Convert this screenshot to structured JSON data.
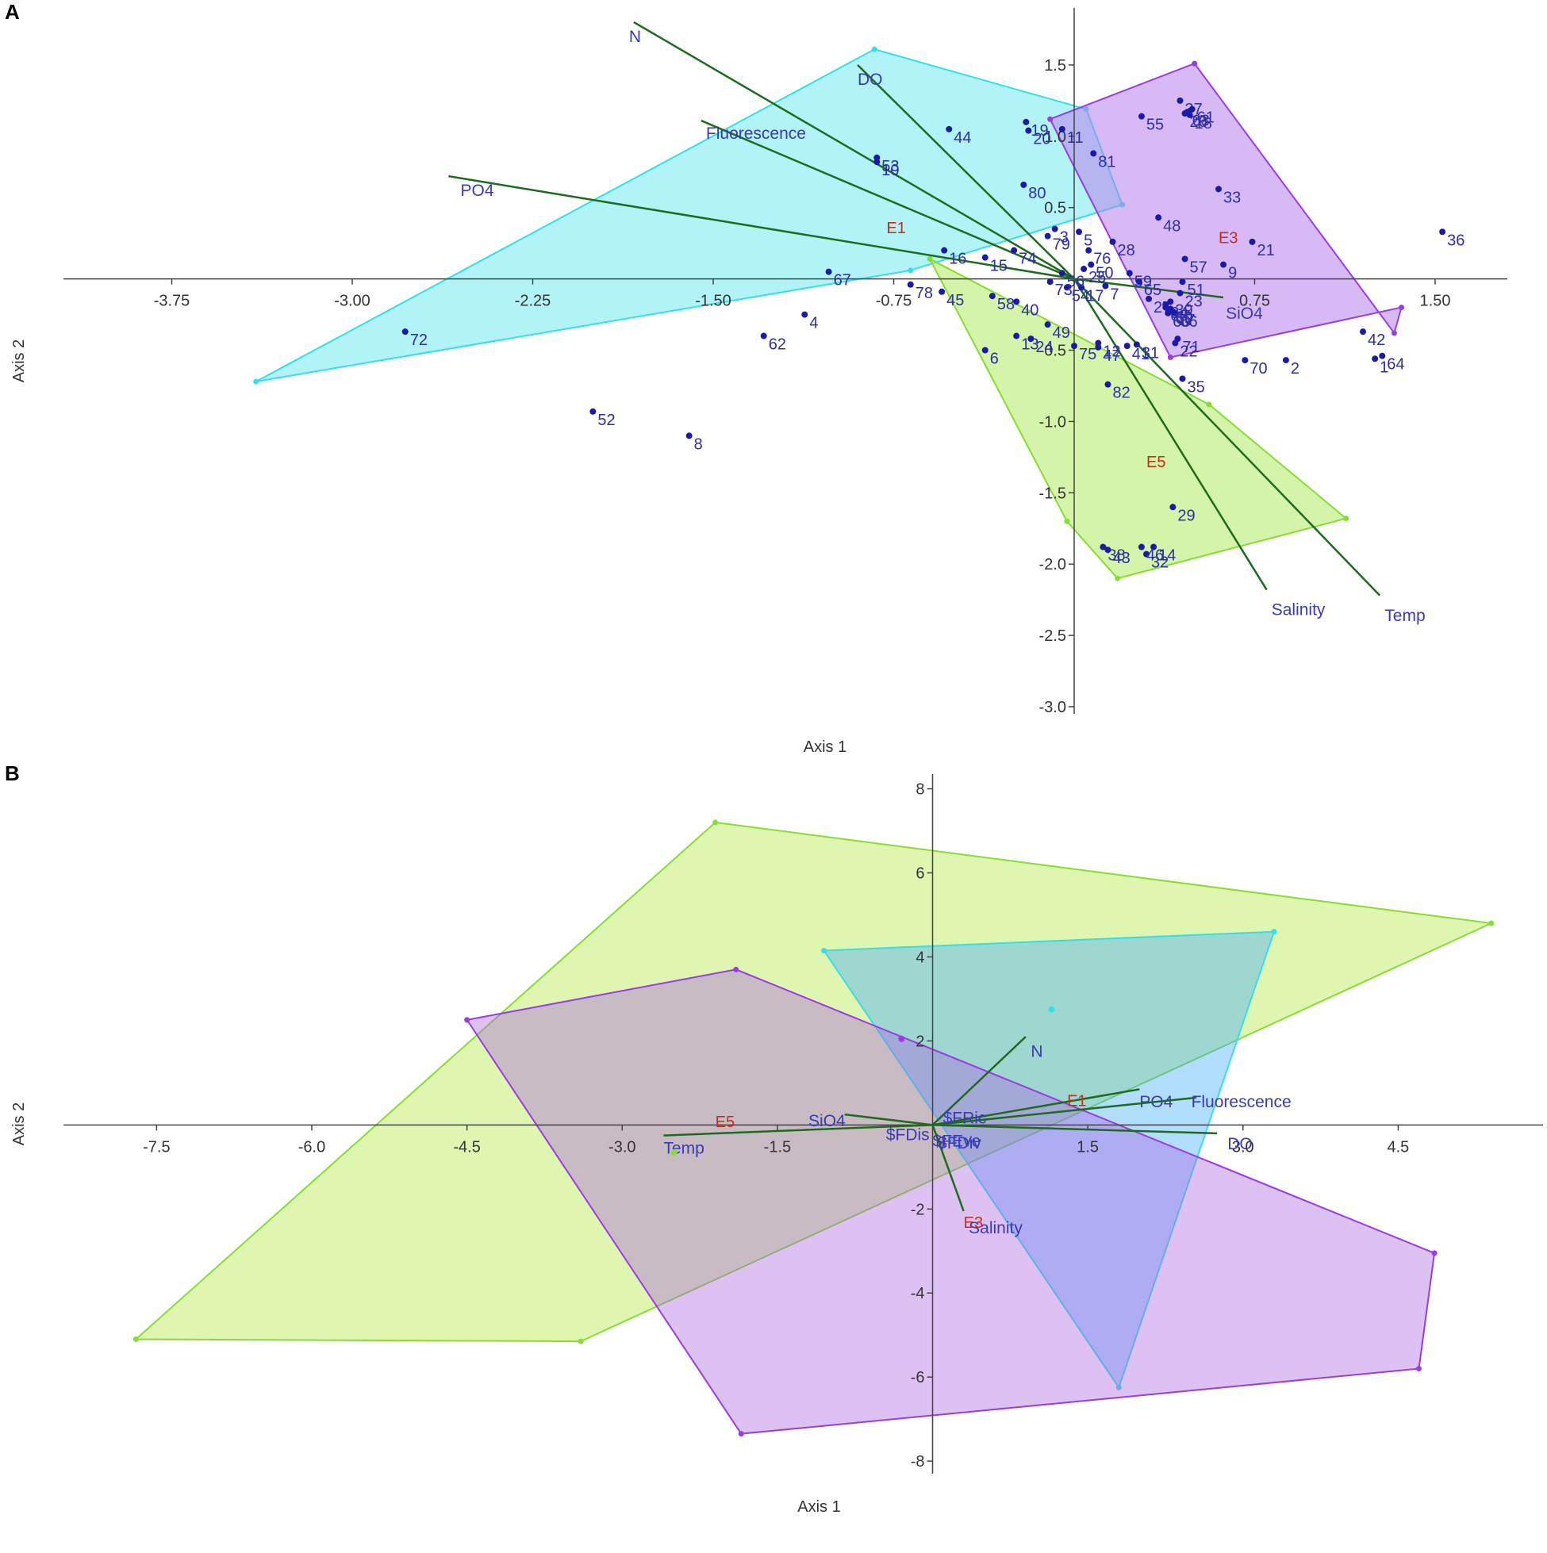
{
  "chart_data": [
    {
      "panel": "A",
      "type": "scatter",
      "xlabel": "Axis 1",
      "ylabel": "Axis 2",
      "xlim": [
        -4.2,
        1.8
      ],
      "ylim": [
        -3.05,
        1.9
      ],
      "x_ticks": [
        "-3.75",
        "-3.00",
        "-2.25",
        "-1.50",
        "-0.75",
        "0.75",
        "1.50"
      ],
      "x_tick_values": [
        -3.75,
        -3.0,
        -2.25,
        -1.5,
        -0.75,
        0.75,
        1.5
      ],
      "y_ticks": [
        "1.5",
        "1.0",
        "0.5",
        "-0.5",
        "-1.0",
        "-1.5",
        "-2.0",
        "-2.5",
        "-3.0"
      ],
      "y_tick_values": [
        1.5,
        1.0,
        0.5,
        -0.5,
        -1.0,
        -1.5,
        -2.0,
        -2.5,
        -3.0
      ],
      "groups": [
        {
          "name": "E1",
          "color": "#33e0e8",
          "fill": "rgba(51,224,232,0.38)",
          "label_at": [
            -0.78,
            0.32
          ],
          "hull": [
            [
              -0.83,
              1.61
            ],
            [
              0.05,
              1.19
            ],
            [
              0.2,
              0.52
            ],
            [
              -0.68,
              0.06
            ],
            [
              -3.4,
              -0.72
            ]
          ]
        },
        {
          "name": "E3",
          "color": "#9a3ce6",
          "fill": "rgba(183,130,236,0.55)",
          "label_at": [
            0.6,
            0.25
          ],
          "hull": [
            [
              -0.1,
              1.12
            ],
            [
              0.5,
              1.51
            ],
            [
              1.33,
              -0.38
            ],
            [
              1.36,
              -0.2
            ],
            [
              0.4,
              -0.55
            ]
          ]
        },
        {
          "name": "E5",
          "color": "#88dd33",
          "fill": "rgba(181,236,112,0.6)",
          "label_at": [
            0.3,
            -1.32
          ],
          "hull": [
            [
              -0.6,
              0.14
            ],
            [
              0.56,
              -0.88
            ],
            [
              1.13,
              -1.68
            ],
            [
              0.18,
              -2.1
            ],
            [
              -0.03,
              -1.7
            ]
          ]
        }
      ],
      "vectors": [
        {
          "label": "N",
          "end": [
            -1.83,
            1.8
          ],
          "label_at": [
            -1.85,
            1.7
          ]
        },
        {
          "label": "DO",
          "end": [
            -0.9,
            1.5
          ],
          "label_at": [
            -0.9,
            1.4
          ]
        },
        {
          "label": "Fluorescence",
          "end": [
            -1.55,
            1.11
          ],
          "label_at": [
            -1.53,
            1.02
          ]
        },
        {
          "label": "PO4",
          "end": [
            -2.6,
            0.72
          ],
          "label_at": [
            -2.55,
            0.62
          ]
        },
        {
          "label": "SiO4",
          "end": [
            0.62,
            -0.13
          ],
          "label_at": [
            0.63,
            -0.24
          ]
        },
        {
          "label": "Salinity",
          "end": [
            0.8,
            -2.18
          ],
          "label_at": [
            0.82,
            -2.32
          ]
        },
        {
          "label": "Temp",
          "end": [
            1.27,
            -2.22
          ],
          "label_at": [
            1.29,
            -2.36
          ]
        }
      ],
      "points": [
        {
          "label": "1",
          "x": 1.25,
          "y": -0.56
        },
        {
          "label": "2",
          "x": 0.88,
          "y": -0.57
        },
        {
          "label": "3",
          "x": -0.08,
          "y": 0.35
        },
        {
          "label": "4",
          "x": -1.12,
          "y": -0.25
        },
        {
          "label": "5",
          "x": 0.02,
          "y": 0.33
        },
        {
          "label": "6",
          "x": -0.37,
          "y": -0.5
        },
        {
          "label": "7",
          "x": 0.13,
          "y": -0.05
        },
        {
          "label": "8",
          "x": -1.6,
          "y": -1.1
        },
        {
          "label": "9",
          "x": 0.62,
          "y": 0.1
        },
        {
          "label": "10",
          "x": -0.82,
          "y": 0.82
        },
        {
          "label": "11",
          "x": -0.05,
          "y": 1.05
        },
        {
          "label": "12",
          "x": 0.1,
          "y": -0.45
        },
        {
          "label": "13",
          "x": -0.24,
          "y": -0.4
        },
        {
          "label": "14",
          "x": 0.33,
          "y": -1.88
        },
        {
          "label": "15",
          "x": -0.37,
          "y": 0.15
        },
        {
          "label": "16",
          "x": -0.54,
          "y": 0.2
        },
        {
          "label": "17",
          "x": 0.03,
          "y": -0.06
        },
        {
          "label": "18",
          "x": 0.48,
          "y": 1.15
        },
        {
          "label": "19",
          "x": -0.2,
          "y": 1.1
        },
        {
          "label": "20",
          "x": -0.19,
          "y": 1.04
        },
        {
          "label": "21",
          "x": 0.74,
          "y": 0.26
        },
        {
          "label": "22",
          "x": 0.42,
          "y": -0.45
        },
        {
          "label": "23",
          "x": 0.44,
          "y": -0.1
        },
        {
          "label": "24",
          "x": -0.18,
          "y": -0.42
        },
        {
          "label": "25",
          "x": 0.04,
          "y": 0.07
        },
        {
          "label": "26",
          "x": 0.46,
          "y": 1.16
        },
        {
          "label": "27",
          "x": 0.31,
          "y": -0.14
        },
        {
          "label": "28",
          "x": 0.16,
          "y": 0.26
        },
        {
          "label": "29",
          "x": 0.41,
          "y": -1.6
        },
        {
          "label": "30",
          "x": 0.4,
          "y": -0.21
        },
        {
          "label": "31",
          "x": 0.26,
          "y": -0.46
        },
        {
          "label": "32",
          "x": 0.3,
          "y": -1.93
        },
        {
          "label": "33",
          "x": 0.6,
          "y": 0.63
        },
        {
          "label": "34",
          "x": 0.38,
          "y": -0.18
        },
        {
          "label": "35",
          "x": 0.45,
          "y": -0.7
        },
        {
          "label": "36",
          "x": 1.53,
          "y": 0.33
        },
        {
          "label": "37",
          "x": 0.44,
          "y": 1.25
        },
        {
          "label": "38",
          "x": 0.12,
          "y": -1.88
        },
        {
          "label": "39",
          "x": 0.4,
          "y": -0.16
        },
        {
          "label": "40",
          "x": -0.24,
          "y": -0.16
        },
        {
          "label": "41",
          "x": 0.22,
          "y": -0.47
        },
        {
          "label": "42",
          "x": 1.2,
          "y": -0.37
        },
        {
          "label": "43",
          "x": 0.14,
          "y": -1.9
        },
        {
          "label": "44",
          "x": -0.52,
          "y": 1.05
        },
        {
          "label": "45",
          "x": -0.55,
          "y": -0.09
        },
        {
          "label": "46",
          "x": 0.28,
          "y": -1.88
        },
        {
          "label": "47",
          "x": 0.1,
          "y": -0.48
        },
        {
          "label": "48",
          "x": 0.35,
          "y": 0.43
        },
        {
          "label": "49",
          "x": -0.11,
          "y": -0.32
        },
        {
          "label": "50",
          "x": 0.07,
          "y": 0.1
        },
        {
          "label": "51",
          "x": 0.45,
          "y": -0.02
        },
        {
          "label": "52",
          "x": -2.0,
          "y": -0.93
        },
        {
          "label": "53",
          "x": -0.82,
          "y": 0.85
        },
        {
          "label": "54",
          "x": -0.03,
          "y": -0.06
        },
        {
          "label": "55",
          "x": 0.28,
          "y": 1.14
        },
        {
          "label": "56",
          "x": -0.05,
          "y": 0.04
        },
        {
          "label": "57",
          "x": 0.46,
          "y": 0.14
        },
        {
          "label": "58",
          "x": -0.34,
          "y": -0.12
        },
        {
          "label": "59",
          "x": 0.23,
          "y": 0.04
        },
        {
          "label": "60",
          "x": 0.39,
          "y": -0.24
        },
        {
          "label": "61",
          "x": 0.49,
          "y": 1.19
        },
        {
          "label": "62",
          "x": -1.29,
          "y": -0.4
        },
        {
          "label": "63",
          "x": 0.47,
          "y": 1.17
        },
        {
          "label": "64",
          "x": 1.28,
          "y": -0.54
        },
        {
          "label": "65",
          "x": 0.27,
          "y": -0.02
        },
        {
          "label": "66",
          "x": 0.42,
          "y": -0.24
        },
        {
          "label": "67",
          "x": -1.02,
          "y": 0.05
        },
        {
          "label": "68",
          "x": 0.38,
          "y": -0.2
        },
        {
          "label": "69",
          "x": 0.4,
          "y": -0.22
        },
        {
          "label": "70",
          "x": 0.71,
          "y": -0.57
        },
        {
          "label": "71",
          "x": 0.43,
          "y": -0.42
        },
        {
          "label": "72",
          "x": -2.78,
          "y": -0.37
        },
        {
          "label": "73",
          "x": -0.1,
          "y": -0.02
        },
        {
          "label": "74",
          "x": -0.25,
          "y": 0.2
        },
        {
          "label": "75",
          "x": 0.0,
          "y": -0.47
        },
        {
          "label": "76",
          "x": 0.06,
          "y": 0.2
        },
        {
          "label": "77",
          "x": 0.41,
          "y": -0.23
        },
        {
          "label": "78",
          "x": -0.68,
          "y": -0.04
        },
        {
          "label": "79",
          "x": -0.11,
          "y": 0.3
        },
        {
          "label": "80",
          "x": -0.21,
          "y": 0.66
        },
        {
          "label": "81",
          "x": 0.08,
          "y": 0.88
        },
        {
          "label": "82",
          "x": 0.14,
          "y": -0.74
        }
      ],
      "point_color": "#1a1aa8",
      "vector_color": "#1e6b1e"
    },
    {
      "panel": "B",
      "type": "scatter",
      "xlabel": "Axis 1",
      "ylabel": "Axis 2",
      "xlim": [
        -8.4,
        5.9
      ],
      "ylim": [
        -8.3,
        8.35
      ],
      "x_ticks": [
        "-7.5",
        "-6.0",
        "-4.5",
        "-3.0",
        "-1.5",
        "1.5",
        "3.0",
        "4.5"
      ],
      "x_tick_values": [
        -7.5,
        -6.0,
        -4.5,
        -3.0,
        -1.5,
        1.5,
        3.0,
        4.5
      ],
      "y_ticks": [
        "8",
        "6",
        "4",
        "2",
        "-2",
        "-4",
        "-6",
        "-8"
      ],
      "y_tick_values": [
        8,
        6,
        4,
        2,
        -2,
        -4,
        -6,
        -8
      ],
      "groups": [
        {
          "name": "E5",
          "color": "#88dd33",
          "fill": "rgba(181,236,80,0.45)",
          "label_at": [
            -2.1,
            -0.05
          ],
          "hull": [
            [
              -2.1,
              7.2
            ],
            [
              5.4,
              4.8
            ],
            [
              -3.4,
              -5.15
            ],
            [
              -7.7,
              -5.1
            ]
          ]
        },
        {
          "name": "E1",
          "color": "#33e0e8",
          "fill": "rgba(60,170,255,0.4)",
          "label_at": [
            1.3,
            0.45
          ],
          "hull": [
            [
              -1.05,
              4.15
            ],
            [
              3.3,
              4.6
            ],
            [
              1.8,
              -6.25
            ]
          ]
        },
        {
          "name": "E3",
          "color": "#9a3ce6",
          "fill": "rgba(170,100,225,0.4)",
          "label_at": [
            0.3,
            -2.45
          ],
          "hull": [
            [
              -4.5,
              2.5
            ],
            [
              -1.9,
              3.7
            ],
            [
              4.85,
              -3.05
            ],
            [
              4.7,
              -5.8
            ],
            [
              -1.85,
              -7.35
            ]
          ]
        }
      ],
      "extra_points": [
        {
          "x": -0.3,
          "y": 2.05,
          "color": "#9a3ce6"
        },
        {
          "x": 1.15,
          "y": 2.75,
          "color": "#33e0e8"
        },
        {
          "x": -2.5,
          "y": -0.65,
          "color": "#88dd33"
        }
      ],
      "vectors": [
        {
          "label": "N",
          "end": [
            0.9,
            2.1
          ],
          "label_at": [
            0.95,
            1.75
          ]
        },
        {
          "label": "PO4",
          "end": [
            2.0,
            0.85
          ],
          "label_at": [
            2.0,
            0.55
          ]
        },
        {
          "label": "Fluorescence",
          "end": [
            2.55,
            0.65
          ],
          "label_at": [
            2.5,
            0.55
          ]
        },
        {
          "label": "DO",
          "end": [
            2.75,
            -0.2
          ],
          "label_at": [
            2.85,
            -0.45
          ]
        },
        {
          "label": "SiO4",
          "end": [
            -0.85,
            0.25
          ],
          "label_at": [
            -1.2,
            0.1
          ]
        },
        {
          "label": "Temp",
          "end": [
            -2.6,
            -0.25
          ],
          "label_at": [
            -2.6,
            -0.55
          ]
        },
        {
          "label": "Salinity",
          "end": [
            0.3,
            -2.05
          ],
          "label_at": [
            0.35,
            -2.45
          ]
        }
      ],
      "vector_small_labels": [
        {
          "label": "$FRic",
          "x": 0.1,
          "y": 0.15
        },
        {
          "label": "$FDis",
          "x": -0.45,
          "y": -0.25
        },
        {
          "label": "$FEve",
          "x": 0.0,
          "y": -0.4
        },
        {
          "label": "$FDiv",
          "x": 0.05,
          "y": -0.45
        }
      ],
      "point_color": "#1a1aa8",
      "vector_color": "#1e6b1e"
    }
  ],
  "panel_letters": {
    "a": "A",
    "b": "B"
  }
}
